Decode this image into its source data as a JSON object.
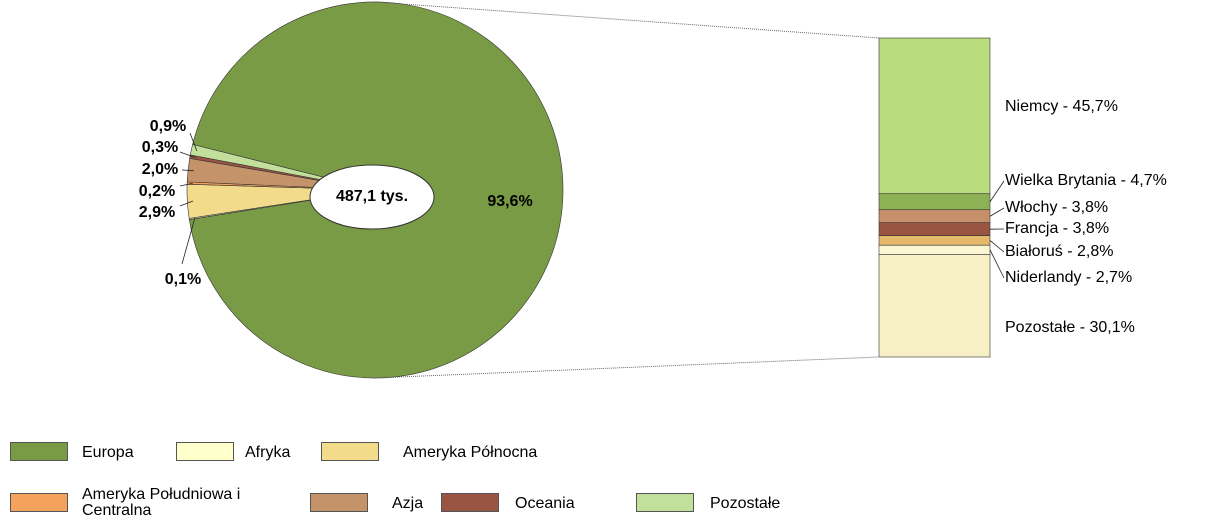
{
  "chart_data": [
    {
      "type": "pie",
      "center_label": "487,1 tys.",
      "categories": [
        "Europa",
        "Afryka",
        "Ameryka Północna",
        "Ameryka Południowa i Centralna",
        "Azja",
        "Oceania",
        "Pozostałe"
      ],
      "values": [
        93.6,
        0.1,
        2.9,
        0.2,
        2.0,
        0.3,
        0.9
      ],
      "value_labels": [
        "93,6%",
        "0,1%",
        "2,9%",
        "0,2%",
        "2,0%",
        "0,3%",
        "0,9%"
      ],
      "colors": [
        "#7a9b45",
        "#ffffcc",
        "#f2dc8c",
        "#f4a25c",
        "#c4936a",
        "#9a5442",
        "#c3df9c"
      ]
    },
    {
      "type": "bar",
      "stacked": true,
      "values": [
        45.7,
        4.7,
        3.8,
        3.8,
        2.8,
        2.7,
        30.1
      ],
      "value_labels": [
        "Niemcy - 45,7%",
        "Wielka Brytania - 4,7%",
        "Włochy - 3,8%",
        "Francja - 3,8%",
        "Białoruś - 2,8%",
        "Niderlandy - 2,7%",
        "Pozostałe - 30,1%"
      ],
      "colors": [
        "#b9dc7e",
        "#8db255",
        "#c8906a",
        "#9a5442",
        "#e4b96a",
        "#fdf6d2",
        "#f7efc5"
      ]
    }
  ]
}
